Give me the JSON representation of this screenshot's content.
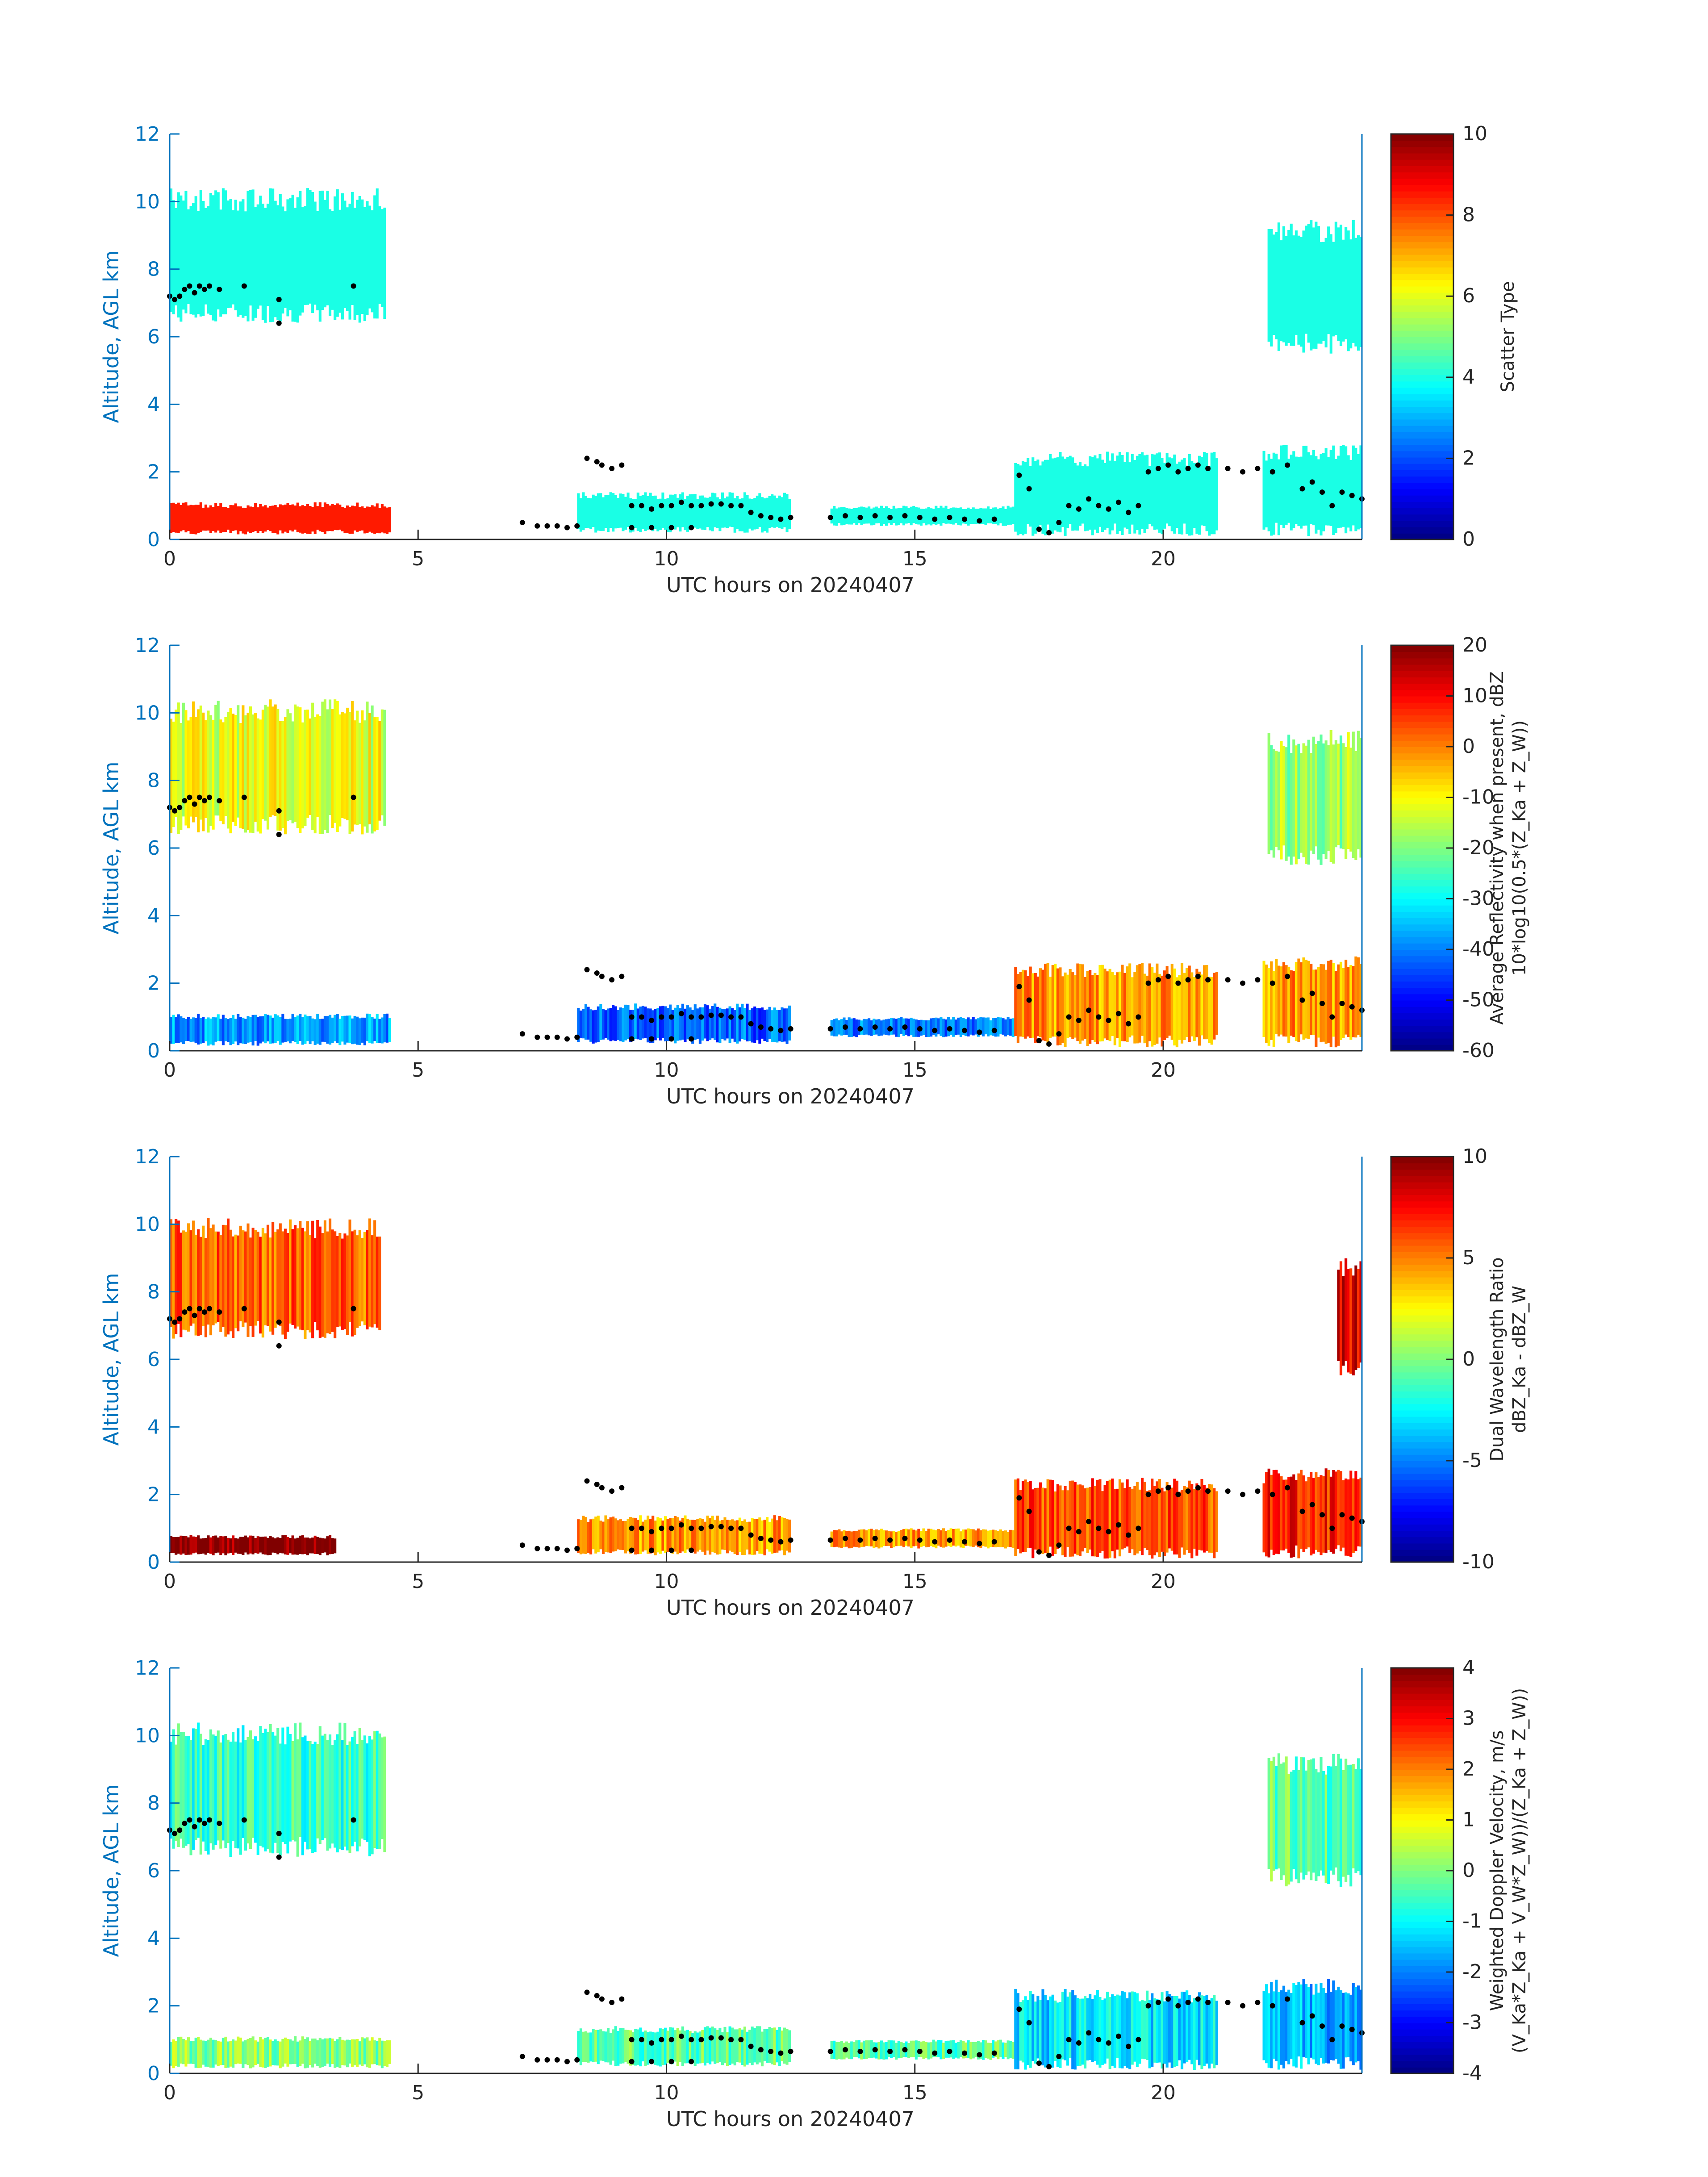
{
  "figure": {
    "xlabel": "UTC hours on 20240407",
    "ylabel": "Altitude, AGL km",
    "x_ticks": [
      "0",
      "5",
      "10",
      "15",
      "20"
    ],
    "y_ticks": [
      "0",
      "2",
      "4",
      "6",
      "8",
      "10",
      "12"
    ],
    "axis_color": "#0072bd"
  },
  "chart_data": [
    {
      "type": "heatmap",
      "title": "",
      "xlabel": "UTC hours on 20240407",
      "ylabel": "Altitude, AGL km",
      "xlim": [
        0,
        24
      ],
      "ylim": [
        0,
        12
      ],
      "colorbar": {
        "label": [
          "Scatter Type"
        ],
        "range": [
          0,
          10
        ],
        "ticks": [
          "0",
          "2",
          "4",
          "6",
          "8",
          "10"
        ]
      },
      "regions": [
        {
          "x": [
            0,
            4.3
          ],
          "y": [
            6.4,
            10.4
          ],
          "value": 4
        },
        {
          "x": [
            22.1,
            24
          ],
          "y": [
            5.5,
            9.5
          ],
          "value": 4
        },
        {
          "x": [
            0,
            4.4
          ],
          "y": [
            0.15,
            1.1
          ],
          "value": 8.5
        },
        {
          "x": [
            8.2,
            12.5
          ],
          "y": [
            0.2,
            1.4
          ],
          "value": 4
        },
        {
          "x": [
            13.3,
            17
          ],
          "y": [
            0.4,
            1.0
          ],
          "value": 4
        },
        {
          "x": [
            17,
            21.1
          ],
          "y": [
            0.1,
            2.6
          ],
          "value": 4
        },
        {
          "x": [
            22,
            24
          ],
          "y": [
            0.1,
            2.8
          ],
          "value": 4
        }
      ]
    },
    {
      "type": "heatmap",
      "title": "",
      "xlabel": "UTC hours on 20240407",
      "ylabel": "Altitude, AGL km",
      "xlim": [
        0,
        24
      ],
      "ylim": [
        0,
        12
      ],
      "colorbar": {
        "label": [
          "Average Reflectivity when present, dBZ",
          "10*log10(0.5*(Z_Ka + Z_W))"
        ],
        "range": [
          -60,
          20
        ],
        "ticks": [
          "-60",
          "-50",
          "-40",
          "-30",
          "-20",
          "-10",
          "0",
          "10",
          "20"
        ]
      },
      "regions": [
        {
          "x": [
            0,
            4.3
          ],
          "y": [
            6.4,
            10.4
          ],
          "value": -12
        },
        {
          "x": [
            22.1,
            24
          ],
          "y": [
            5.5,
            9.5
          ],
          "value": -18
        },
        {
          "x": [
            0,
            4.4
          ],
          "y": [
            0.15,
            1.1
          ],
          "value": -38
        },
        {
          "x": [
            8.2,
            12.5
          ],
          "y": [
            0.2,
            1.4
          ],
          "value": -42
        },
        {
          "x": [
            13.3,
            17
          ],
          "y": [
            0.4,
            1.0
          ],
          "value": -40
        },
        {
          "x": [
            17,
            21.1
          ],
          "y": [
            0.1,
            2.6
          ],
          "value": -2
        },
        {
          "x": [
            22,
            24
          ],
          "y": [
            0.1,
            2.8
          ],
          "value": -2
        }
      ]
    },
    {
      "type": "heatmap",
      "title": "",
      "xlabel": "UTC hours on 20240407",
      "ylabel": "Altitude, AGL km",
      "xlim": [
        0,
        24
      ],
      "ylim": [
        0,
        12
      ],
      "colorbar": {
        "label": [
          "Dual Wavelength Ratio",
          "dBZ_Ka - dBZ_W"
        ],
        "range": [
          -10,
          10
        ],
        "ticks": [
          "-10",
          "-5",
          "0",
          "5",
          "10"
        ]
      },
      "regions": [
        {
          "x": [
            0,
            4.2
          ],
          "y": [
            6.6,
            10.2
          ],
          "value": 5.5
        },
        {
          "x": [
            23.5,
            24
          ],
          "y": [
            5.5,
            9.1
          ],
          "value": 8
        },
        {
          "x": [
            0,
            3.3
          ],
          "y": [
            0.2,
            0.8
          ],
          "value": 10
        },
        {
          "x": [
            8.2,
            12.5
          ],
          "y": [
            0.2,
            1.4
          ],
          "value": 4.5
        },
        {
          "x": [
            13.3,
            17
          ],
          "y": [
            0.4,
            1.0
          ],
          "value": 4.5
        },
        {
          "x": [
            17,
            21.1
          ],
          "y": [
            0.1,
            2.5
          ],
          "value": 6
        },
        {
          "x": [
            22,
            24
          ],
          "y": [
            0.1,
            2.8
          ],
          "value": 7
        }
      ]
    },
    {
      "type": "heatmap",
      "title": "",
      "xlabel": "UTC hours on 20240407",
      "ylabel": "Altitude, AGL km",
      "xlim": [
        0,
        24
      ],
      "ylim": [
        0,
        12
      ],
      "colorbar": {
        "label": [
          "Weighted Doppler Velocity, m/s",
          "(V_Ka*Z_Ka + V_W*Z_W))/(Z_Ka + Z_W))"
        ],
        "range": [
          -4,
          4
        ],
        "ticks": [
          "-4",
          "-3",
          "-2",
          "-1",
          "0",
          "1",
          "2",
          "3",
          "4"
        ]
      },
      "regions": [
        {
          "x": [
            0,
            4.3
          ],
          "y": [
            6.4,
            10.4
          ],
          "value": -0.6
        },
        {
          "x": [
            22.1,
            24
          ],
          "y": [
            5.5,
            9.5
          ],
          "value": -0.2
        },
        {
          "x": [
            0,
            4.4
          ],
          "y": [
            0.15,
            1.1
          ],
          "value": 0.1
        },
        {
          "x": [
            8.2,
            12.5
          ],
          "y": [
            0.2,
            1.4
          ],
          "value": -0.3
        },
        {
          "x": [
            13.3,
            17
          ],
          "y": [
            0.4,
            1.0
          ],
          "value": -0.3
        },
        {
          "x": [
            17,
            21.1
          ],
          "y": [
            0.1,
            2.5
          ],
          "value": -1.2
        },
        {
          "x": [
            22,
            24
          ],
          "y": [
            0.1,
            2.8
          ],
          "value": -1.6
        }
      ]
    }
  ],
  "cloud_base_points": [
    [
      0.0,
      7.2
    ],
    [
      0.1,
      7.1
    ],
    [
      0.2,
      7.2
    ],
    [
      0.3,
      7.4
    ],
    [
      0.4,
      7.5
    ],
    [
      0.5,
      7.3
    ],
    [
      0.6,
      7.5
    ],
    [
      0.7,
      7.4
    ],
    [
      0.8,
      7.5
    ],
    [
      1.0,
      7.4
    ],
    [
      1.5,
      7.5
    ],
    [
      2.2,
      7.1
    ],
    [
      2.2,
      6.4
    ],
    [
      3.7,
      7.5
    ],
    [
      7.1,
      0.5
    ],
    [
      7.4,
      0.4
    ],
    [
      7.6,
      0.4
    ],
    [
      7.8,
      0.4
    ],
    [
      8.0,
      0.35
    ],
    [
      8.2,
      0.4
    ],
    [
      8.4,
      2.4
    ],
    [
      8.6,
      2.3
    ],
    [
      8.7,
      2.2
    ],
    [
      8.9,
      2.1
    ],
    [
      9.1,
      2.2
    ],
    [
      9.3,
      1.0
    ],
    [
      9.5,
      1.0
    ],
    [
      9.7,
      0.9
    ],
    [
      9.9,
      1.0
    ],
    [
      10.1,
      1.0
    ],
    [
      10.3,
      1.1
    ],
    [
      10.5,
      1.0
    ],
    [
      10.7,
      1.0
    ],
    [
      10.9,
      1.05
    ],
    [
      11.1,
      1.05
    ],
    [
      11.3,
      1.0
    ],
    [
      11.5,
      1.0
    ],
    [
      11.7,
      0.8
    ],
    [
      11.9,
      0.7
    ],
    [
      12.1,
      0.65
    ],
    [
      12.3,
      0.6
    ],
    [
      12.5,
      0.65
    ],
    [
      9.3,
      0.35
    ],
    [
      9.7,
      0.35
    ],
    [
      10.1,
      0.35
    ],
    [
      10.5,
      0.35
    ],
    [
      13.3,
      0.65
    ],
    [
      13.6,
      0.7
    ],
    [
      13.9,
      0.65
    ],
    [
      14.2,
      0.7
    ],
    [
      14.5,
      0.65
    ],
    [
      14.8,
      0.7
    ],
    [
      15.1,
      0.65
    ],
    [
      15.4,
      0.6
    ],
    [
      15.7,
      0.65
    ],
    [
      16.0,
      0.6
    ],
    [
      16.3,
      0.55
    ],
    [
      16.6,
      0.6
    ],
    [
      17.1,
      1.9
    ],
    [
      17.3,
      1.5
    ],
    [
      17.5,
      0.3
    ],
    [
      17.7,
      0.2
    ],
    [
      17.9,
      0.5
    ],
    [
      18.1,
      1.0
    ],
    [
      18.3,
      0.9
    ],
    [
      18.5,
      1.2
    ],
    [
      18.7,
      1.0
    ],
    [
      18.9,
      0.9
    ],
    [
      19.1,
      1.1
    ],
    [
      19.3,
      0.8
    ],
    [
      19.5,
      1.0
    ],
    [
      19.7,
      2.0
    ],
    [
      19.9,
      2.1
    ],
    [
      20.1,
      2.2
    ],
    [
      20.3,
      2.0
    ],
    [
      20.5,
      2.1
    ],
    [
      20.7,
      2.2
    ],
    [
      20.9,
      2.1
    ],
    [
      21.3,
      2.1
    ],
    [
      21.6,
      2.0
    ],
    [
      21.9,
      2.1
    ],
    [
      22.2,
      2.0
    ],
    [
      22.5,
      2.2
    ],
    [
      22.8,
      1.5
    ],
    [
      23.0,
      1.7
    ],
    [
      23.2,
      1.4
    ],
    [
      23.4,
      1.0
    ],
    [
      23.6,
      1.4
    ],
    [
      23.8,
      1.3
    ],
    [
      24.0,
      1.2
    ]
  ]
}
